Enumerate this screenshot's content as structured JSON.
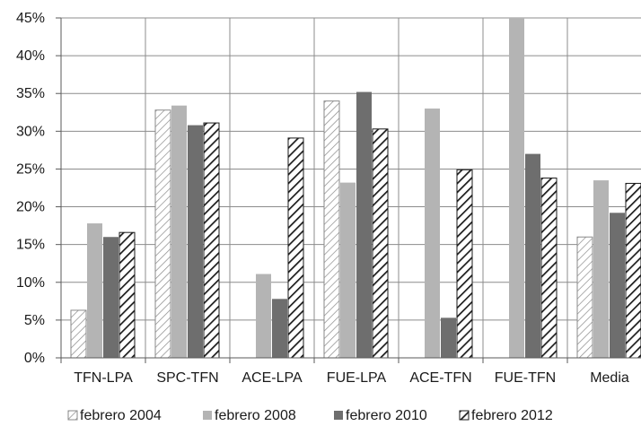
{
  "chart_data": {
    "type": "bar",
    "title": "",
    "xlabel": "",
    "ylabel": "",
    "ylim": [
      0,
      45
    ],
    "y_ticks": [
      "0%",
      "5%",
      "10%",
      "15%",
      "20%",
      "25%",
      "30%",
      "35%",
      "40%",
      "45%"
    ],
    "y_tick_values": [
      0,
      5,
      10,
      15,
      20,
      25,
      30,
      35,
      40,
      45
    ],
    "categories": [
      "TFN-LPA",
      "SPC-TFN",
      "ACE-LPA",
      "FUE-LPA",
      "ACE-TFN",
      "FUE-TFN",
      "Media"
    ],
    "series": [
      {
        "name": "febrero 2004",
        "values": [
          6.3,
          32.8,
          null,
          34.0,
          null,
          null,
          16.0
        ],
        "color": "#ffffff",
        "pattern": "light-hatch"
      },
      {
        "name": "febrero 2008",
        "values": [
          17.8,
          33.4,
          11.1,
          23.2,
          33.0,
          45.0,
          23.5
        ],
        "color": "#b4b4b4",
        "pattern": "solid"
      },
      {
        "name": "febrero 2010",
        "values": [
          16.0,
          30.8,
          7.8,
          35.2,
          5.3,
          27.0,
          19.2
        ],
        "color": "#6e6e6e",
        "pattern": "solid"
      },
      {
        "name": "febrero 2012",
        "values": [
          16.6,
          31.1,
          29.1,
          30.3,
          24.9,
          23.8,
          23.1
        ],
        "color": "#1a1a1a",
        "pattern": "heavy-hatch"
      }
    ],
    "grid": true,
    "legend_position": "bottom"
  }
}
